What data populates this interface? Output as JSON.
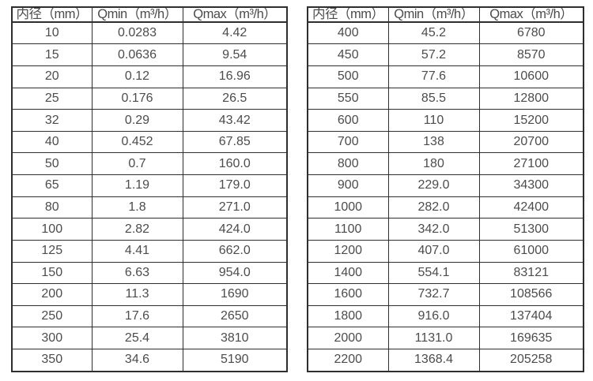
{
  "theme": {
    "background": "#ffffff",
    "border_color": "#2e2e2e",
    "text_color": "#4c4c4c"
  },
  "columns": [
    "内径（mm）",
    "Qmin（m³/h）",
    "Qmax（m³/h）"
  ],
  "tables": {
    "left": {
      "rows": [
        [
          "10",
          "0.0283",
          "4.42"
        ],
        [
          "15",
          "0.0636",
          "9.54"
        ],
        [
          "20",
          "0.12",
          "16.96"
        ],
        [
          "25",
          "0.176",
          "26.5"
        ],
        [
          "32",
          "0.29",
          "43.42"
        ],
        [
          "40",
          "0.452",
          "67.85"
        ],
        [
          "50",
          "0.7",
          "160.0"
        ],
        [
          "65",
          "1.19",
          "179.0"
        ],
        [
          "80",
          "1.8",
          "271.0"
        ],
        [
          "100",
          "2.82",
          "424.0"
        ],
        [
          "125",
          "4.41",
          "662.0"
        ],
        [
          "150",
          "6.63",
          "954.0"
        ],
        [
          "200",
          "11.3",
          "1690"
        ],
        [
          "250",
          "17.6",
          "2650"
        ],
        [
          "300",
          "25.4",
          "3810"
        ],
        [
          "350",
          "34.6",
          "5190"
        ]
      ]
    },
    "right": {
      "rows": [
        [
          "400",
          "45.2",
          "6780"
        ],
        [
          "450",
          "57.2",
          "8570"
        ],
        [
          "500",
          "77.6",
          "10600"
        ],
        [
          "550",
          "85.5",
          "12800"
        ],
        [
          "600",
          "110",
          "15200"
        ],
        [
          "700",
          "138",
          "20700"
        ],
        [
          "800",
          "180",
          "27100"
        ],
        [
          "900",
          "229.0",
          "34300"
        ],
        [
          "1000",
          "282.0",
          "42400"
        ],
        [
          "1100",
          "342.0",
          "51300"
        ],
        [
          "1200",
          "407.0",
          "61000"
        ],
        [
          "1400",
          "554.1",
          "83121"
        ],
        [
          "1600",
          "732.7",
          "108566"
        ],
        [
          "1800",
          "916.0",
          "137404"
        ],
        [
          "2000",
          "1131.0",
          "169635"
        ],
        [
          "2200",
          "1368.4",
          "205258"
        ]
      ]
    }
  }
}
